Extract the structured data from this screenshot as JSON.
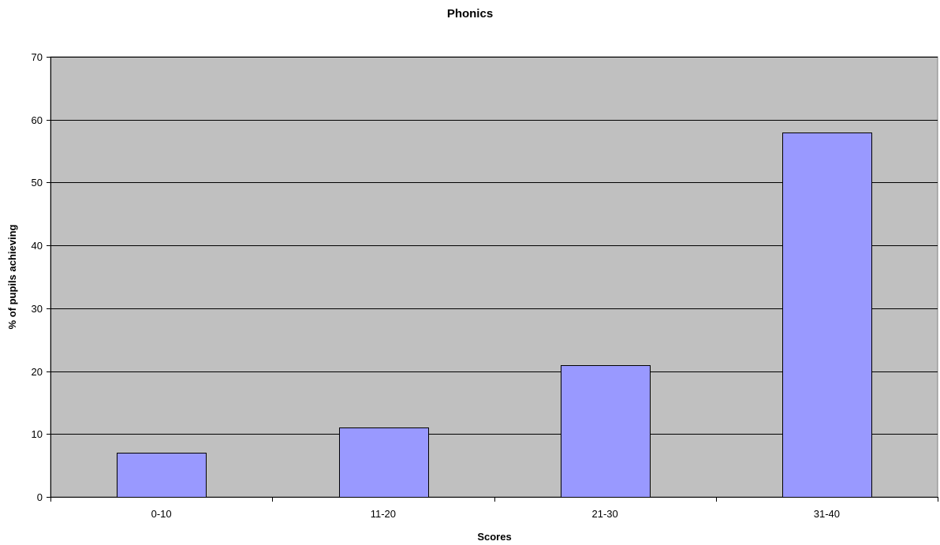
{
  "chart_data": {
    "type": "bar",
    "title": "Phonics",
    "xlabel": "Scores",
    "ylabel": "% of pupils achieving",
    "categories": [
      "0-10",
      "11-20",
      "21-30",
      "31-40"
    ],
    "values": [
      7,
      11,
      21,
      58
    ],
    "ylim": [
      0,
      70
    ],
    "yticks": [
      0,
      10,
      20,
      30,
      40,
      50,
      60,
      70
    ],
    "grid": true,
    "legend": "none",
    "colors": {
      "bar": "#9999ff",
      "bar_outline": "#000000",
      "plot_background": "#c0c0c0",
      "gridline": "#000000"
    }
  }
}
